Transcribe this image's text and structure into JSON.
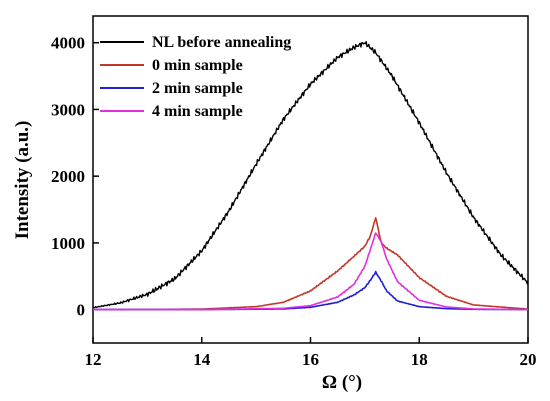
{
  "chart_data": {
    "type": "line",
    "xlabel": "Ω  (°)",
    "ylabel": "Intensity (a.u.)",
    "xlim": [
      12,
      20
    ],
    "ylim": [
      -500,
      4400
    ],
    "xticks": [
      "12",
      "14",
      "16",
      "18",
      "20"
    ],
    "yticks": [
      "0",
      "1000",
      "2000",
      "3000",
      "4000"
    ],
    "grid": false,
    "legend_position": "top-left",
    "series": [
      {
        "name": "NL before annealing",
        "color": "#000000",
        "x": [
          12.0,
          12.5,
          13.0,
          13.5,
          14.0,
          14.5,
          15.0,
          15.5,
          16.0,
          16.5,
          16.8,
          17.0,
          17.2,
          17.5,
          18.0,
          18.5,
          19.0,
          19.5,
          20.0
        ],
        "y": [
          30,
          100,
          230,
          460,
          880,
          1480,
          2180,
          2850,
          3380,
          3780,
          3930,
          4000,
          3850,
          3500,
          2800,
          2050,
          1380,
          820,
          400
        ]
      },
      {
        "name": "0 min sample",
        "color": "#c0392b",
        "x": [
          12.0,
          13.0,
          14.0,
          15.0,
          15.5,
          16.0,
          16.5,
          16.8,
          17.0,
          17.1,
          17.2,
          17.3,
          17.4,
          17.6,
          18.0,
          18.5,
          19.0,
          20.0
        ],
        "y": [
          0,
          2,
          8,
          45,
          110,
          280,
          580,
          800,
          950,
          1100,
          1380,
          1000,
          920,
          820,
          480,
          200,
          70,
          8
        ]
      },
      {
        "name": "2 min sample",
        "color": "#1f1fd6",
        "x": [
          12.0,
          14.0,
          15.5,
          16.0,
          16.5,
          16.8,
          17.0,
          17.1,
          17.2,
          17.3,
          17.4,
          17.6,
          18.0,
          18.5,
          19.0,
          20.0
        ],
        "y": [
          0,
          0,
          10,
          35,
          110,
          220,
          330,
          440,
          560,
          430,
          280,
          130,
          45,
          15,
          5,
          0
        ]
      },
      {
        "name": "4 min sample",
        "color": "#e22fe2",
        "x": [
          12.0,
          14.0,
          15.5,
          16.0,
          16.5,
          16.8,
          17.0,
          17.1,
          17.2,
          17.3,
          17.4,
          17.6,
          18.0,
          18.5,
          19.0,
          20.0
        ],
        "y": [
          0,
          0,
          20,
          60,
          190,
          380,
          650,
          900,
          1150,
          1020,
          760,
          420,
          140,
          40,
          10,
          0
        ]
      }
    ]
  }
}
